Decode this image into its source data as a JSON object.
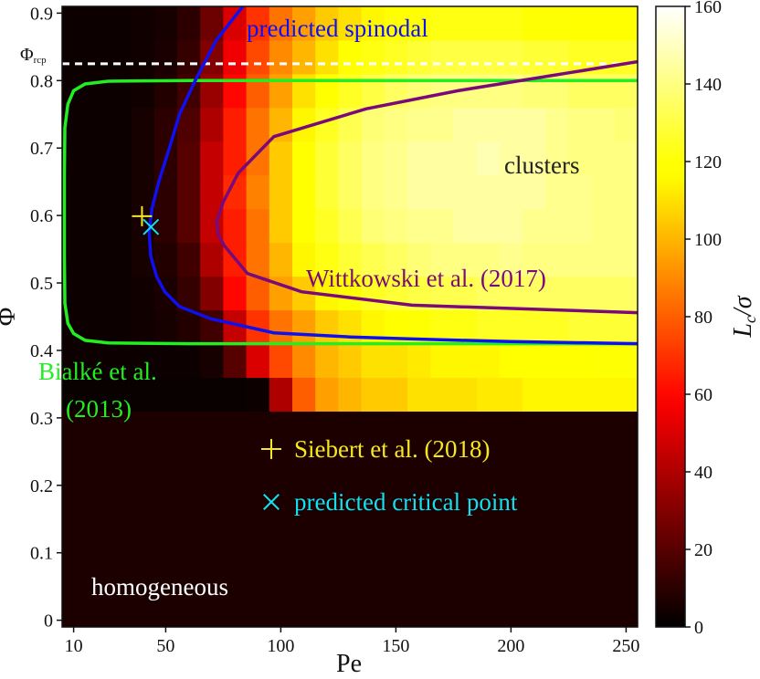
{
  "chart_data": {
    "type": "heatmap",
    "xlabel": "Pe",
    "ylabel": "Φ",
    "xlim": [
      5,
      255
    ],
    "ylim": [
      -0.01,
      0.91
    ],
    "xticks": [
      10,
      50,
      100,
      150,
      200,
      250
    ],
    "yticks": [
      0,
      0.1,
      0.2,
      0.3,
      0.4,
      0.5,
      0.6,
      0.7,
      0.8,
      0.9
    ],
    "colormap": "hot",
    "background_color": "#1c0000",
    "heatmap": {
      "xbins": [
        5,
        15,
        25,
        35,
        45,
        55,
        65,
        75,
        85,
        95,
        105,
        115,
        125,
        135,
        145,
        155,
        165,
        175,
        185,
        195,
        205,
        215,
        225,
        235,
        245,
        255
      ],
      "ybins": [
        0.31,
        0.36,
        0.41,
        0.46,
        0.51,
        0.56,
        0.61,
        0.66,
        0.71,
        0.76,
        0.81,
        0.86,
        0.91
      ],
      "values": [
        [
          2,
          2,
          2,
          2,
          2,
          2,
          2,
          2,
          3,
          40,
          80,
          95,
          100,
          105,
          105,
          110,
          110,
          110,
          112,
          112,
          115,
          115,
          115,
          115,
          115
        ],
        [
          3,
          3,
          3,
          3,
          3,
          3,
          5,
          20,
          50,
          75,
          90,
          100,
          105,
          110,
          110,
          112,
          115,
          115,
          115,
          118,
          118,
          118,
          118,
          120,
          120
        ],
        [
          3,
          3,
          3,
          4,
          5,
          8,
          15,
          45,
          70,
          85,
          95,
          105,
          110,
          115,
          118,
          120,
          122,
          122,
          125,
          125,
          125,
          125,
          128,
          128,
          128
        ],
        [
          3,
          3,
          3,
          4,
          6,
          12,
          30,
          60,
          80,
          95,
          105,
          115,
          120,
          125,
          128,
          130,
          132,
          132,
          135,
          135,
          135,
          135,
          135,
          135,
          135
        ],
        [
          3,
          3,
          3,
          5,
          8,
          15,
          40,
          65,
          85,
          100,
          115,
          122,
          128,
          132,
          135,
          138,
          140,
          140,
          140,
          142,
          140,
          140,
          140,
          140,
          140
        ],
        [
          3,
          3,
          3,
          5,
          10,
          20,
          45,
          65,
          85,
          105,
          118,
          125,
          132,
          138,
          140,
          142,
          142,
          145,
          145,
          145,
          142,
          142,
          142,
          140,
          140
        ],
        [
          3,
          3,
          3,
          5,
          10,
          20,
          45,
          68,
          88,
          105,
          118,
          128,
          135,
          140,
          142,
          145,
          145,
          145,
          145,
          145,
          145,
          142,
          142,
          140,
          140
        ],
        [
          3,
          3,
          3,
          5,
          10,
          20,
          45,
          65,
          85,
          105,
          118,
          128,
          135,
          140,
          142,
          145,
          145,
          145,
          148,
          145,
          145,
          142,
          140,
          140,
          140
        ],
        [
          3,
          3,
          3,
          5,
          10,
          18,
          40,
          65,
          85,
          100,
          115,
          125,
          132,
          138,
          140,
          142,
          142,
          145,
          145,
          145,
          145,
          142,
          140,
          140,
          138
        ],
        [
          3,
          3,
          3,
          4,
          8,
          15,
          35,
          60,
          80,
          95,
          110,
          118,
          125,
          130,
          135,
          138,
          140,
          140,
          140,
          140,
          138,
          138,
          135,
          135,
          135
        ],
        [
          3,
          3,
          3,
          4,
          6,
          12,
          30,
          55,
          75,
          90,
          100,
          110,
          118,
          122,
          125,
          128,
          130,
          130,
          130,
          130,
          128,
          128,
          125,
          125,
          125
        ],
        [
          3,
          3,
          3,
          4,
          5,
          10,
          25,
          50,
          70,
          85,
          95,
          105,
          110,
          115,
          118,
          120,
          122,
          122,
          122,
          122,
          120,
          120,
          118,
          118,
          118
        ]
      ]
    },
    "colorbar": {
      "label": "L",
      "label_sub": "c",
      "label_tail": "/σ",
      "lim": [
        0,
        160
      ],
      "ticks": [
        0,
        20,
        40,
        60,
        80,
        100,
        120,
        140,
        160
      ]
    },
    "hline": {
      "value": 0.825,
      "color": "#ffffff",
      "label": "Φ",
      "label_sub": "rcp"
    },
    "series": [
      {
        "name": "Bialké et al. (2013)",
        "color": "#22ee22",
        "x": [
          255,
          150,
          60,
          25,
          15,
          10,
          7.5,
          6.2,
          6,
          6,
          6.2,
          7.5,
          10,
          15,
          25,
          60,
          150,
          255
        ],
        "values": [
          0.8,
          0.8,
          0.8,
          0.799,
          0.795,
          0.785,
          0.765,
          0.73,
          0.66,
          0.54,
          0.47,
          0.44,
          0.425,
          0.415,
          0.411,
          0.41,
          0.41,
          0.41
        ]
      },
      {
        "name": "predicted spinodal",
        "color": "#1010ee",
        "x": [
          83.5,
          72,
          62.8,
          56,
          51.6,
          47,
          44,
          42.8,
          43.5,
          46,
          49.6,
          56,
          69.5,
          97,
          130,
          157,
          200,
          255
        ],
        "values": [
          0.91,
          0.86,
          0.8,
          0.75,
          0.7,
          0.65,
          0.61,
          0.575,
          0.54,
          0.51,
          0.487,
          0.465,
          0.447,
          0.426,
          0.42,
          0.417,
          0.413,
          0.41
        ]
      },
      {
        "name": "Wittkowski et al. (2017)",
        "color": "#7a0a7a",
        "x": [
          255,
          177,
          137,
          97,
          81.5,
          75,
          72,
          73,
          75.5,
          85.5,
          109,
          157,
          255
        ],
        "values": [
          0.828,
          0.785,
          0.758,
          0.717,
          0.663,
          0.62,
          0.589,
          0.57,
          0.555,
          0.514,
          0.487,
          0.467,
          0.456
        ]
      }
    ],
    "points": [
      {
        "name": "Siebert et al. (2018)",
        "marker": "+",
        "color": "#f5e820",
        "x": 39.7,
        "y": 0.599
      },
      {
        "name": "predicted critical point",
        "marker": "x",
        "color": "#11e0f0",
        "x": 43.6,
        "y": 0.583
      }
    ],
    "annotations": [
      {
        "text": "predicted spinodal",
        "color": "#1010ee"
      },
      {
        "text": "clusters",
        "color": "#222222"
      },
      {
        "text": "Wittkowski et al. (2017)",
        "color": "#7a0a7a"
      },
      {
        "text": "Bialké et al.",
        "color": "#22ee22"
      },
      {
        "text": "(2013)",
        "color": "#22ee22"
      },
      {
        "text": "homogeneous",
        "color": "#ffffff"
      }
    ]
  }
}
